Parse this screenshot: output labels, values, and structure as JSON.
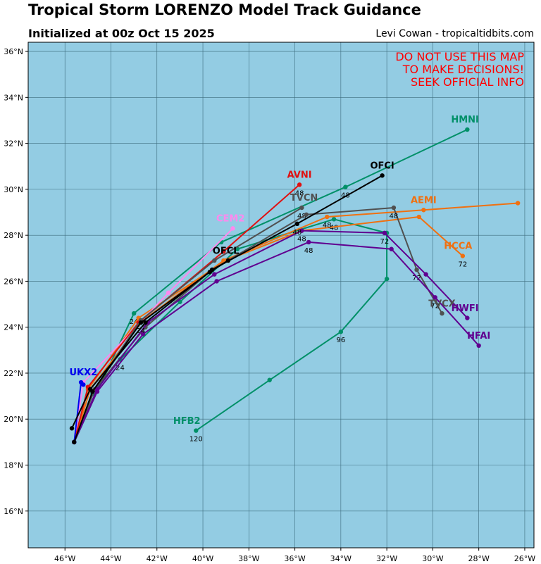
{
  "header": {
    "title": "Tropical Storm LORENZO Model Track Guidance",
    "subtitle": "Initialized at 00z Oct 15 2025",
    "credit": "Levi Cowan - tropicaltidbits.com"
  },
  "warning": [
    "DO NOT USE THIS MAP",
    "TO MAKE DECISIONS!",
    "SEEK OFFICIAL INFO"
  ],
  "map": {
    "lon_range": [
      -47.6,
      -25.6
    ],
    "lat_range": [
      14.4,
      36.4
    ],
    "lon_ticks": [
      -46,
      -44,
      -42,
      -40,
      -38,
      -36,
      -34,
      -32,
      -30,
      -28,
      -26
    ],
    "lon_tick_labels": [
      "46°W",
      "44°W",
      "42°W",
      "40°W",
      "38°W",
      "36°W",
      "34°W",
      "32°W",
      "30°W",
      "28°W",
      "26°W"
    ],
    "lat_ticks": [
      16,
      18,
      20,
      22,
      24,
      26,
      28,
      30,
      32,
      34,
      36
    ],
    "lat_tick_labels": [
      "16°N",
      "18°N",
      "20°N",
      "22°N",
      "24°N",
      "26°N",
      "28°N",
      "30°N",
      "32°N",
      "34°N",
      "36°N"
    ],
    "ocean_color": "#93cce3",
    "grid_color": "#3d6b7d"
  },
  "tracks": [
    {
      "name": "HMNI",
      "color": "#009068",
      "points": [
        [
          -45.6,
          19.0
        ],
        [
          -44.6,
          21.2
        ],
        [
          -43.0,
          24.6
        ],
        [
          -39.2,
          27.7
        ],
        [
          -33.8,
          30.1
        ],
        [
          -28.5,
          32.6
        ]
      ],
      "hours": [
        {
          "i": 2,
          "t": "24"
        },
        {
          "i": 4,
          "t": "48"
        }
      ]
    },
    {
      "name": "HFB2",
      "color": "#009068",
      "points": [
        [
          -45.6,
          19.0
        ],
        [
          -44.8,
          21.1
        ],
        [
          -43.6,
          22.6
        ],
        [
          -41.0,
          25.1
        ],
        [
          -38.5,
          27.4
        ],
        [
          -34.3,
          28.7
        ],
        [
          -32.0,
          28.1
        ],
        [
          -32.0,
          26.1
        ],
        [
          -34.0,
          23.8
        ],
        [
          -37.1,
          21.7
        ],
        [
          -40.3,
          19.5
        ]
      ],
      "hours": [
        {
          "i": 2,
          "t": "24"
        },
        {
          "i": 5,
          "t": "48"
        },
        {
          "i": 8,
          "t": "96"
        },
        {
          "i": 10,
          "t": "120"
        }
      ]
    },
    {
      "name": "HCCA",
      "color": "#f07010",
      "points": [
        [
          -45.6,
          19.0
        ],
        [
          -45.0,
          21.3
        ],
        [
          -42.8,
          24.4
        ],
        [
          -39.0,
          26.9
        ],
        [
          -35.7,
          28.2
        ],
        [
          -30.6,
          28.8
        ],
        [
          -28.7,
          27.1
        ]
      ],
      "hours": [
        {
          "i": 6,
          "t": "72"
        }
      ]
    },
    {
      "name": "AEMI",
      "color": "#f07010",
      "points": [
        [
          -45.6,
          19.0
        ],
        [
          -44.9,
          21.3
        ],
        [
          -42.6,
          24.3
        ],
        [
          -39.1,
          26.9
        ],
        [
          -34.6,
          28.8
        ],
        [
          -30.4,
          29.1
        ],
        [
          -26.3,
          29.4
        ]
      ],
      "hours": [
        {
          "i": 4,
          "t": "48"
        }
      ]
    },
    {
      "name": "CEM2",
      "color": "#ff88ee",
      "points": [
        [
          -45.6,
          19.0
        ],
        [
          -45.2,
          21.6
        ],
        [
          -41.5,
          25.5
        ],
        [
          -38.7,
          28.3
        ]
      ],
      "hours": []
    },
    {
      "name": "AVNI",
      "color": "#e01010",
      "points": [
        [
          -45.6,
          19.0
        ],
        [
          -45.0,
          21.4
        ],
        [
          -42.8,
          24.2
        ],
        [
          -39.1,
          27.3
        ],
        [
          -35.8,
          30.2
        ]
      ],
      "hours": [
        {
          "i": 4,
          "t": "48"
        }
      ]
    },
    {
      "name": "TVCN",
      "color": "#505050",
      "points": [
        [
          -45.6,
          19.0
        ],
        [
          -44.8,
          21.2
        ],
        [
          -42.7,
          24.3
        ],
        [
          -39.5,
          26.9
        ],
        [
          -35.7,
          29.2
        ]
      ],
      "hours": [
        {
          "i": 4,
          "t": "48"
        }
      ]
    },
    {
      "name": "TVCX",
      "color": "#505050",
      "points": [
        [
          -45.6,
          19.0
        ],
        [
          -44.7,
          21.3
        ],
        [
          -42.5,
          24.0
        ],
        [
          -39.6,
          26.5
        ],
        [
          -35.5,
          28.9
        ],
        [
          -31.7,
          29.2
        ],
        [
          -30.7,
          26.5
        ],
        [
          -29.6,
          24.6
        ]
      ],
      "hours": [
        {
          "i": 5,
          "t": "48"
        },
        {
          "i": 6,
          "t": "72"
        }
      ]
    },
    {
      "name": "HWFI",
      "color": "#600090",
      "points": [
        [
          -45.6,
          19.0
        ],
        [
          -44.6,
          21.3
        ],
        [
          -42.4,
          24.2
        ],
        [
          -39.5,
          26.3
        ],
        [
          -35.7,
          28.2
        ],
        [
          -32.1,
          28.1
        ],
        [
          -30.3,
          26.3
        ],
        [
          -28.5,
          24.4
        ]
      ],
      "hours": [
        {
          "i": 4,
          "t": "48"
        },
        {
          "i": 5,
          "t": "72"
        }
      ]
    },
    {
      "name": "HFAI",
      "color": "#600090",
      "points": [
        [
          -45.6,
          19.0
        ],
        [
          -44.6,
          21.2
        ],
        [
          -42.6,
          23.7
        ],
        [
          -39.4,
          26.0
        ],
        [
          -35.4,
          27.7
        ],
        [
          -31.8,
          27.4
        ],
        [
          -29.9,
          25.3
        ],
        [
          -28.0,
          23.2
        ]
      ],
      "hours": [
        {
          "i": 4,
          "t": "48"
        },
        {
          "i": 6,
          "t": "72"
        }
      ]
    },
    {
      "name": "UKX2",
      "color": "#0000ee",
      "points": [
        [
          -45.6,
          19.0
        ],
        [
          -45.3,
          21.6
        ],
        [
          -45.2,
          21.5
        ]
      ],
      "hours": []
    },
    {
      "name": "OFCL",
      "color": "#000000",
      "points": [
        [
          -45.6,
          19.0
        ],
        [
          -44.8,
          21.2
        ],
        [
          -42.7,
          24.2
        ],
        [
          -39.7,
          26.4
        ],
        [
          -38.9,
          26.9
        ]
      ],
      "hours": [
        {
          "i": 2,
          "t": "24"
        }
      ]
    },
    {
      "name": "OFCI",
      "color": "#000000",
      "points": [
        [
          -45.7,
          19.6
        ],
        [
          -44.9,
          21.3
        ],
        [
          -42.5,
          24.2
        ],
        [
          -39.6,
          26.5
        ],
        [
          -35.9,
          28.5
        ],
        [
          -32.2,
          30.6
        ]
      ],
      "hours": [
        {
          "i": 4,
          "t": "48"
        }
      ]
    }
  ],
  "track_labels": [
    {
      "name": "HMNI",
      "text": "HMNI",
      "color": "#009068",
      "lon": -28.6,
      "lat": 32.9
    },
    {
      "name": "HFB2",
      "text": "HFB2",
      "color": "#009068",
      "lon": -40.7,
      "lat": 19.8
    },
    {
      "name": "HCCA",
      "text": "HCCA",
      "color": "#f07010",
      "lon": -28.9,
      "lat": 27.4
    },
    {
      "name": "AEMI",
      "text": "AEMI",
      "color": "#f07010",
      "lon": -30.4,
      "lat": 29.4
    },
    {
      "name": "CEM2",
      "text": "CEM2",
      "color": "#ff88ee",
      "lon": -38.8,
      "lat": 28.6
    },
    {
      "name": "AVNI",
      "text": "AVNI",
      "color": "#e01010",
      "lon": -35.8,
      "lat": 30.5
    },
    {
      "name": "TVCN",
      "text": "TVCN",
      "color": "#505050",
      "lon": -35.6,
      "lat": 29.5
    },
    {
      "name": "TVCX",
      "text": "TVCX",
      "color": "#505050",
      "lon": -29.6,
      "lat": 24.9
    },
    {
      "name": "HWFI",
      "text": "HWFI",
      "color": "#600090",
      "lon": -28.6,
      "lat": 24.7
    },
    {
      "name": "HFAI",
      "text": "HFAI",
      "color": "#600090",
      "lon": -28.0,
      "lat": 23.5
    },
    {
      "name": "UKX2",
      "text": "UKX2",
      "color": "#0000ee",
      "lon": -45.2,
      "lat": 21.9
    },
    {
      "name": "OFCL",
      "text": "OFCL",
      "color": "#000000",
      "lon": -39.0,
      "lat": 27.2
    },
    {
      "name": "OFCI",
      "text": "OFCI",
      "color": "#000000",
      "lon": -32.2,
      "lat": 30.9
    }
  ]
}
